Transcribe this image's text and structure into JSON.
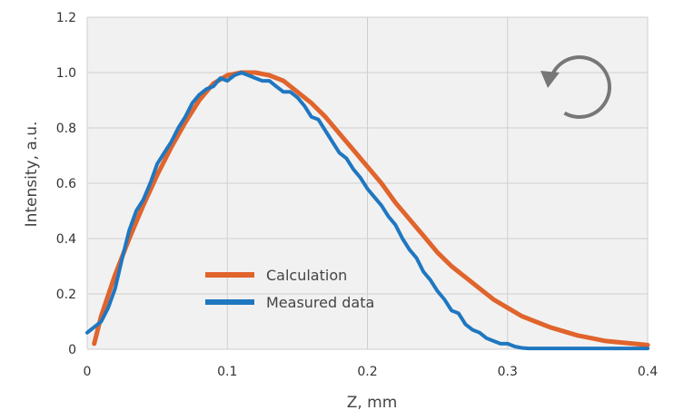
{
  "chart_data": {
    "type": "line",
    "title": "",
    "xlabel": "Z, mm",
    "ylabel": "Intensity, a.u.",
    "xlim": [
      0,
      0.4
    ],
    "ylim": [
      0,
      1.2
    ],
    "x_ticks": [
      0,
      0.1,
      0.2,
      0.3,
      0.4
    ],
    "x_tick_labels": [
      "0",
      "0.1",
      "0.2",
      "0.3",
      "0.4"
    ],
    "y_ticks": [
      0,
      0.2,
      0.4,
      0.6,
      0.8,
      1.0,
      1.2
    ],
    "y_tick_labels": [
      "0",
      "0.2",
      "0.4",
      "0.6",
      "0.8",
      "1.0",
      "1.2"
    ],
    "grid": true,
    "legend_position": "bottom-left",
    "series": [
      {
        "name": "Calculation",
        "color": "#e0642c",
        "x": [
          0.005,
          0.01,
          0.02,
          0.03,
          0.04,
          0.05,
          0.06,
          0.07,
          0.08,
          0.09,
          0.1,
          0.11,
          0.12,
          0.13,
          0.14,
          0.15,
          0.16,
          0.17,
          0.18,
          0.19,
          0.2,
          0.21,
          0.22,
          0.23,
          0.24,
          0.25,
          0.26,
          0.27,
          0.28,
          0.29,
          0.3,
          0.31,
          0.32,
          0.33,
          0.34,
          0.35,
          0.36,
          0.37,
          0.38,
          0.39,
          0.4
        ],
        "y": [
          0.02,
          0.12,
          0.27,
          0.4,
          0.52,
          0.63,
          0.73,
          0.82,
          0.9,
          0.96,
          0.99,
          1.0,
          1.0,
          0.99,
          0.97,
          0.93,
          0.89,
          0.84,
          0.78,
          0.72,
          0.66,
          0.6,
          0.53,
          0.47,
          0.41,
          0.35,
          0.3,
          0.26,
          0.22,
          0.18,
          0.15,
          0.12,
          0.1,
          0.08,
          0.065,
          0.05,
          0.04,
          0.03,
          0.025,
          0.02,
          0.015
        ]
      },
      {
        "name": "Measured data",
        "color": "#1f77c0",
        "x": [
          0.0,
          0.01,
          0.015,
          0.02,
          0.025,
          0.03,
          0.035,
          0.04,
          0.045,
          0.05,
          0.055,
          0.06,
          0.065,
          0.07,
          0.075,
          0.08,
          0.085,
          0.09,
          0.095,
          0.1,
          0.105,
          0.11,
          0.115,
          0.12,
          0.125,
          0.13,
          0.135,
          0.14,
          0.145,
          0.15,
          0.155,
          0.16,
          0.165,
          0.17,
          0.175,
          0.18,
          0.185,
          0.19,
          0.195,
          0.2,
          0.205,
          0.21,
          0.215,
          0.22,
          0.225,
          0.23,
          0.235,
          0.24,
          0.245,
          0.25,
          0.255,
          0.26,
          0.265,
          0.27,
          0.275,
          0.28,
          0.285,
          0.29,
          0.295,
          0.3,
          0.305,
          0.31,
          0.315,
          0.32,
          0.325,
          0.33,
          0.335,
          0.34,
          0.345,
          0.35,
          0.36,
          0.37,
          0.38,
          0.39,
          0.4
        ],
        "y": [
          0.06,
          0.1,
          0.15,
          0.22,
          0.33,
          0.43,
          0.5,
          0.54,
          0.6,
          0.67,
          0.71,
          0.75,
          0.8,
          0.84,
          0.89,
          0.92,
          0.94,
          0.95,
          0.98,
          0.97,
          0.99,
          1.0,
          0.99,
          0.98,
          0.97,
          0.97,
          0.95,
          0.93,
          0.93,
          0.91,
          0.88,
          0.84,
          0.83,
          0.79,
          0.75,
          0.71,
          0.69,
          0.65,
          0.62,
          0.58,
          0.55,
          0.52,
          0.48,
          0.45,
          0.4,
          0.36,
          0.33,
          0.28,
          0.25,
          0.21,
          0.18,
          0.14,
          0.13,
          0.09,
          0.07,
          0.06,
          0.04,
          0.03,
          0.02,
          0.02,
          0.01,
          0.005,
          0.003,
          0.003,
          0.003,
          0.003,
          0.003,
          0.003,
          0.003,
          0.003,
          0.003,
          0.003,
          0.003,
          0.003,
          0.003
        ]
      }
    ]
  },
  "colors": {
    "plot_background": "#f1f1f1",
    "grid": "#cfcfcf",
    "rotate_icon": "#777777"
  },
  "icons": {
    "rotate": "rotate-ccw-icon"
  }
}
